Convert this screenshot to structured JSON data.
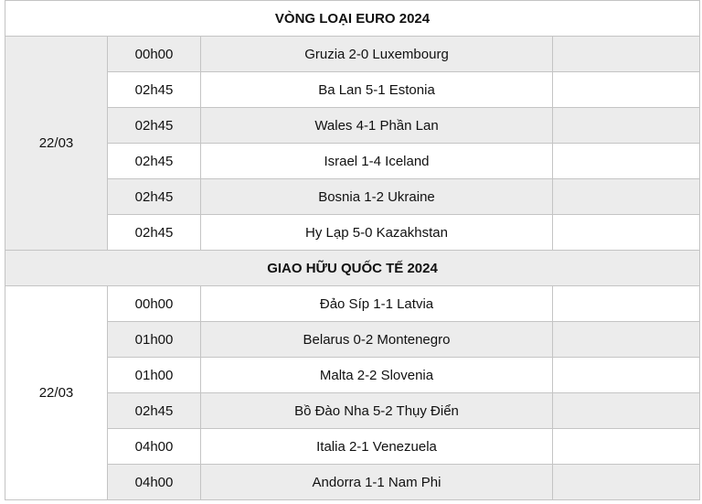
{
  "sections": [
    {
      "title": "VÒNG LOẠI EURO 2024",
      "date": "22/03",
      "matches": [
        {
          "time": "00h00",
          "match": "Gruzia 2-0 Luxembourg",
          "note": ""
        },
        {
          "time": "02h45",
          "match": "Ba Lan 5-1 Estonia",
          "note": ""
        },
        {
          "time": "02h45",
          "match": "Wales 4-1 Phần Lan",
          "note": ""
        },
        {
          "time": "02h45",
          "match": "Israel 1-4 Iceland",
          "note": ""
        },
        {
          "time": "02h45",
          "match": "Bosnia 1-2 Ukraine",
          "note": ""
        },
        {
          "time": "02h45",
          "match": "Hy Lạp 5-0 Kazakhstan",
          "note": ""
        }
      ]
    },
    {
      "title": "GIAO HỮU QUỐC TẾ 2024",
      "date": "22/03",
      "matches": [
        {
          "time": "00h00",
          "match": "Đảo Síp 1-1 Latvia",
          "note": ""
        },
        {
          "time": "01h00",
          "match": "Belarus 0-2 Montenegro",
          "note": ""
        },
        {
          "time": "01h00",
          "match": "Malta 2-2 Slovenia",
          "note": ""
        },
        {
          "time": "02h45",
          "match": "Bồ Đào Nha 5-2 Thụy Điển",
          "note": ""
        },
        {
          "time": "04h00",
          "match": "Italia 2-1 Venezuela",
          "note": ""
        },
        {
          "time": "04h00",
          "match": "Andorra 1-1 Nam Phi",
          "note": ""
        }
      ]
    }
  ]
}
